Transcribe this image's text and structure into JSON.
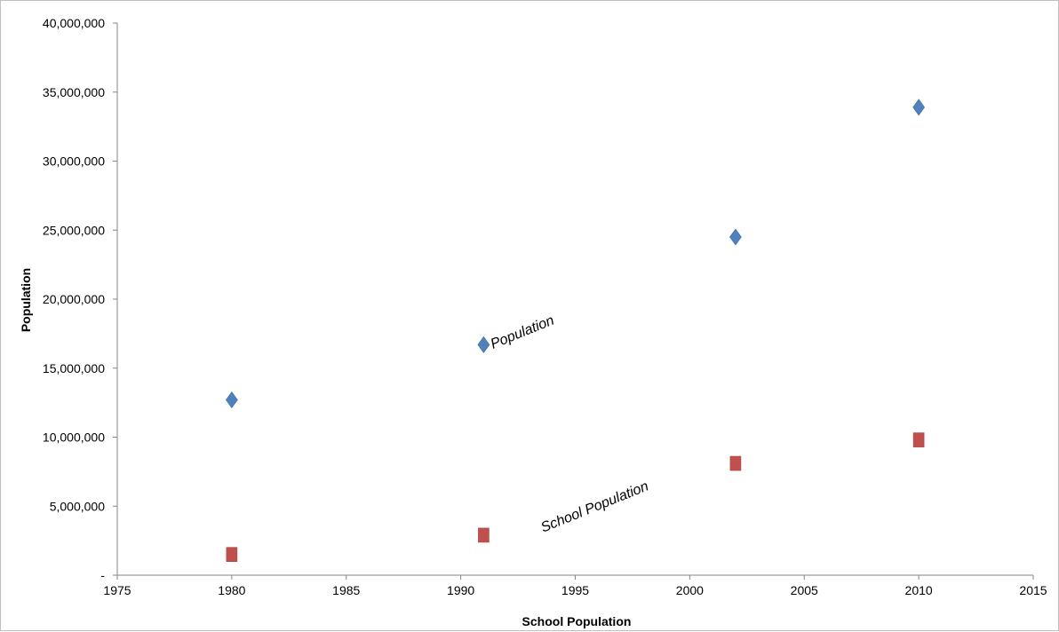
{
  "chart_data": {
    "type": "scatter",
    "title": "",
    "xlabel": "School Population",
    "ylabel": "Population",
    "xlim": [
      1975,
      2015
    ],
    "ylim": [
      0,
      40000000
    ],
    "x_ticks": [
      "1975",
      "1980",
      "1985",
      "1990",
      "1995",
      "2000",
      "2005",
      "2010",
      "2015"
    ],
    "y_ticks": [
      "-",
      "5,000,000",
      "10,000,000",
      "15,000,000",
      "20,000,000",
      "25,000,000",
      "30,000,000",
      "35,000,000",
      "40,000,000"
    ],
    "grid": false,
    "legend": "none",
    "series": [
      {
        "marker": "diamond",
        "color": "#4f81bd",
        "x": [
          1980,
          1991,
          2002,
          2010
        ],
        "y": [
          12700000,
          16700000,
          24500000,
          33900000
        ]
      },
      {
        "marker": "square",
        "color": "#c0504d",
        "x": [
          1980,
          1991,
          2002,
          2010
        ],
        "y": [
          1500000,
          2900000,
          8100000,
          9800000
        ]
      }
    ],
    "annotations": [
      {
        "text": "Population",
        "x": 1991.4,
        "y": 16400000,
        "angle": -22
      },
      {
        "text": "School Population",
        "x": 1993.6,
        "y": 3100000,
        "angle": -22
      }
    ]
  }
}
